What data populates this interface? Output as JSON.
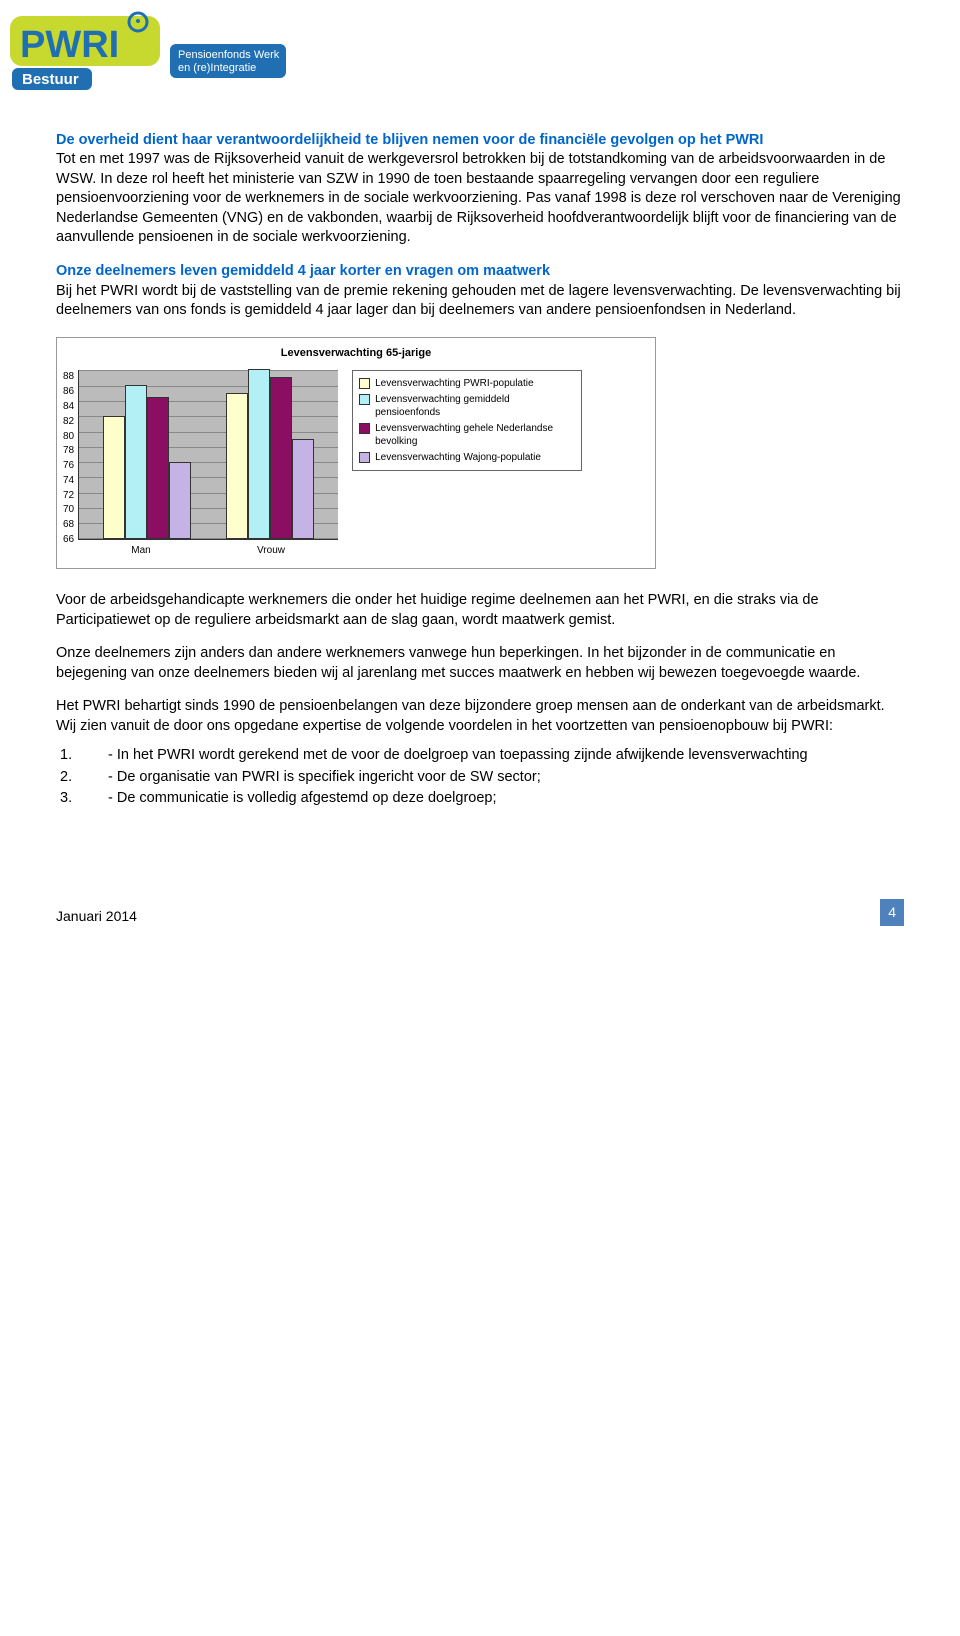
{
  "logo": {
    "brand": "PWRI",
    "sub": "Bestuur",
    "tagline1": "Pensioenfonds Werk",
    "tagline2": "en (re)Integratie",
    "yellow": "#c7d92f",
    "blue": "#1f6fb2",
    "text_blue": "#1f6fb2",
    "white": "#ffffff"
  },
  "section1": {
    "heading": "De overheid dient haar verantwoordelijkheid te blijven nemen voor de financiële gevolgen op het PWRI",
    "body": "Tot en met 1997 was de Rijksoverheid vanuit de werkgeversrol betrokken bij de totstandkoming van de arbeidsvoorwaarden in de WSW. In deze rol heeft het ministerie van SZW in 1990 de toen bestaande spaarregeling vervangen door een reguliere pensioenvoorziening voor de werknemers in de sociale werkvoorziening. Pas vanaf 1998 is deze rol verschoven naar de Vereniging Nederlandse Gemeenten (VNG) en de vakbonden, waarbij de Rijksoverheid  hoofdverantwoordelijk blijft voor de financiering van de aanvullende pensioenen in de sociale werkvoorziening."
  },
  "section2": {
    "heading": "Onze deelnemers leven gemiddeld 4 jaar korter en vragen om maatwerk",
    "body": "Bij het PWRI wordt bij de vaststelling van de premie rekening gehouden met de lagere levensverwachting. De levensverwachting bij deelnemers van ons fonds is gemiddeld 4 jaar lager dan bij deelnemers van andere pensioenfondsen in Nederland."
  },
  "chart": {
    "title": "Levensverwachting 65-jarige",
    "type": "bar",
    "ylim": [
      66,
      88
    ],
    "ytick_step": 2,
    "yticks": [
      "88",
      "86",
      "84",
      "82",
      "80",
      "78",
      "76",
      "74",
      "72",
      "70",
      "68",
      "66"
    ],
    "categories": [
      "Man",
      "Vrouw"
    ],
    "series": [
      {
        "label": "Levensverwachting PWRI-populatie",
        "color": "#ffffcc",
        "values": [
          82,
          85
        ]
      },
      {
        "label": "Levensverwachting gemiddeld pensioenfonds",
        "color": "#b3f0f5",
        "values": [
          86,
          88
        ]
      },
      {
        "label": "Levensverwachting gehele Nederlandse bevolking",
        "color": "#8a0e62",
        "values": [
          84.5,
          87
        ]
      },
      {
        "label": "Levensverwachting Wajong-populatie",
        "color": "#c5b3e6",
        "values": [
          76,
          79
        ]
      }
    ],
    "plot_bg": "#bbbbbb",
    "grid_color": "#888888",
    "bar_border": "#333333",
    "axis_color": "#333333"
  },
  "body_paras": [
    "Voor de arbeidsgehandicapte werknemers die onder het huidige regime deelnemen aan het PWRI, en die straks via de Participatiewet op de reguliere arbeidsmarkt aan de slag gaan, wordt maatwerk gemist.",
    "Onze deelnemers zijn anders dan andere werknemers vanwege hun beperkingen. In het bijzonder in de communicatie en bejegening van onze deelnemers bieden wij al jarenlang met succes maatwerk en hebben wij bewezen toegevoegde waarde.",
    "Het PWRI behartigt sinds 1990 de pensioenbelangen van deze bijzondere groep mensen aan de onderkant van de arbeidsmarkt. Wij zien vanuit de door ons opgedane expertise de volgende voordelen in het voortzetten van pensioenopbouw bij PWRI:"
  ],
  "list": [
    {
      "n": "1.",
      "t": "- In het PWRI wordt gerekend met de voor de doelgroep van toepassing zijnde afwijkende levensverwachting"
    },
    {
      "n": "2.",
      "t": "- De organisatie van PWRI is specifiek ingericht voor de SW sector;"
    },
    {
      "n": "3.",
      "t": "- De communicatie is volledig afgestemd op deze doelgroep;"
    }
  ],
  "footer": {
    "date": "Januari 2014",
    "page": "4"
  }
}
